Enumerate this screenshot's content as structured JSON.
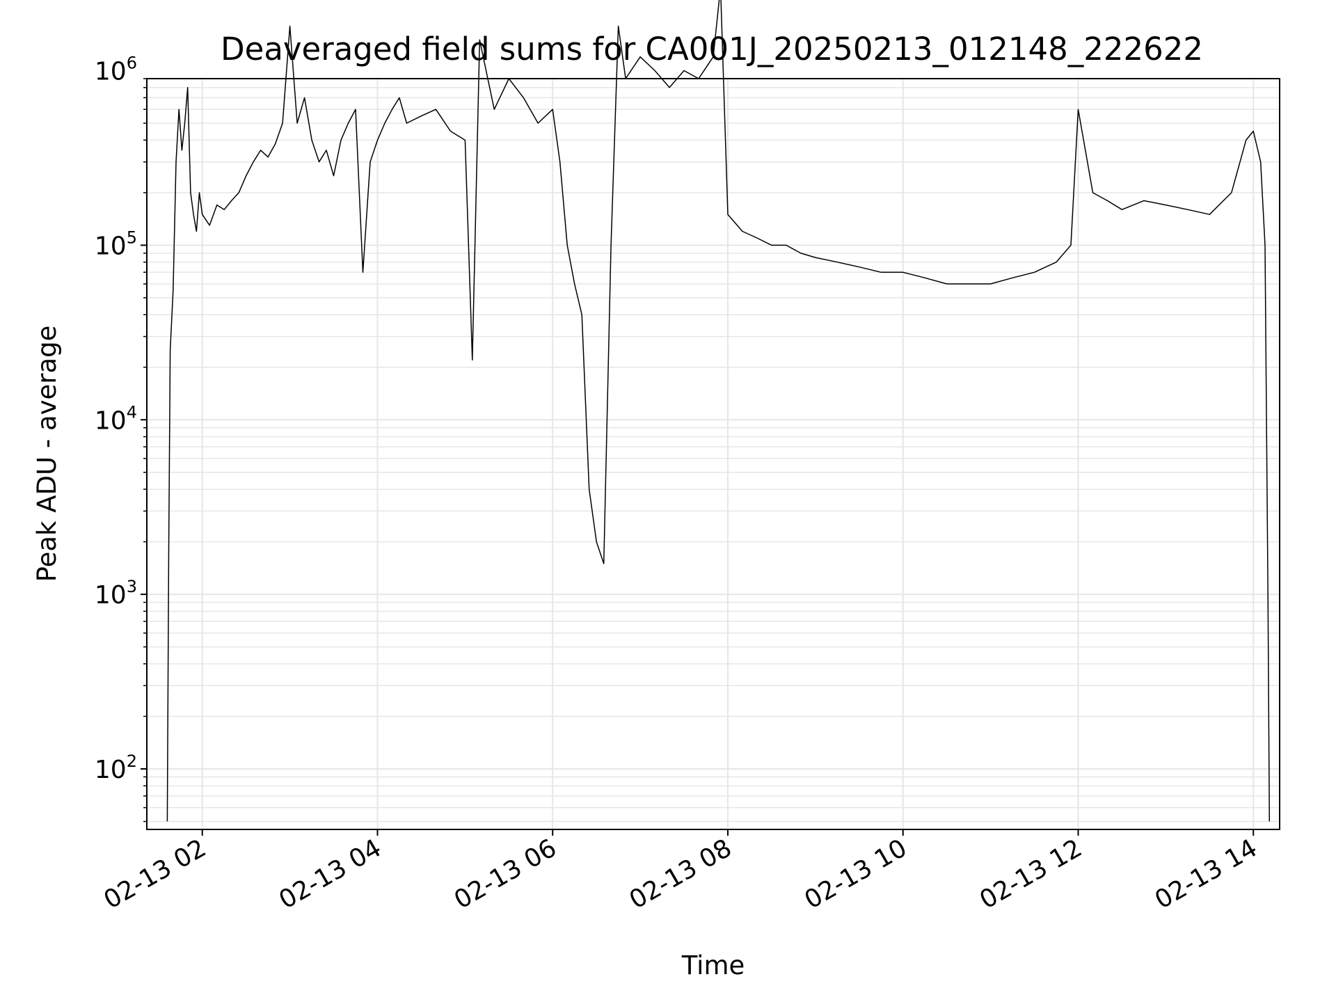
{
  "chart_data": {
    "type": "line",
    "title": "Deaveraged field sums for CA001J_20250213_012148_222622",
    "xlabel": "Time",
    "ylabel": "Peak ADU - average",
    "yscale": "log",
    "ylim": [
      45,
      900000
    ],
    "xlim": [
      "02-13 01:22",
      "02-13 14:18"
    ],
    "grid": true,
    "line_color": "#000000",
    "grid_color": "#e6e6e6",
    "x_ticks": [
      "02-13 02",
      "02-13 04",
      "02-13 06",
      "02-13 08",
      "02-13 10",
      "02-13 12",
      "02-13 14"
    ],
    "y_ticks": [
      {
        "base": "10",
        "exp": "2",
        "value": 100
      },
      {
        "base": "10",
        "exp": "3",
        "value": 1000
      },
      {
        "base": "10",
        "exp": "4",
        "value": 10000
      },
      {
        "base": "10",
        "exp": "5",
        "value": 100000
      },
      {
        "base": "10",
        "exp": "6",
        "value": 1000000
      }
    ],
    "series": [
      {
        "x": [
          "02-13 01:36",
          "02-13 01:37",
          "02-13 01:38",
          "02-13 01:40",
          "02-13 01:42",
          "02-13 01:44",
          "02-13 01:46",
          "02-13 01:48",
          "02-13 01:50",
          "02-13 01:52",
          "02-13 01:54",
          "02-13 01:56",
          "02-13 01:58",
          "02-13 02:00",
          "02-13 02:05",
          "02-13 02:10",
          "02-13 02:15",
          "02-13 02:20",
          "02-13 02:25",
          "02-13 02:30",
          "02-13 02:35",
          "02-13 02:40",
          "02-13 02:45",
          "02-13 02:50",
          "02-13 02:55",
          "02-13 03:00",
          "02-13 03:05",
          "02-13 03:10",
          "02-13 03:15",
          "02-13 03:20",
          "02-13 03:25",
          "02-13 03:30",
          "02-13 03:35",
          "02-13 03:40",
          "02-13 03:45",
          "02-13 03:50",
          "02-13 03:55",
          "02-13 04:00",
          "02-13 04:05",
          "02-13 04:10",
          "02-13 04:15",
          "02-13 04:20",
          "02-13 04:30",
          "02-13 04:40",
          "02-13 04:50",
          "02-13 05:00",
          "02-13 05:05",
          "02-13 05:10",
          "02-13 05:20",
          "02-13 05:30",
          "02-13 05:40",
          "02-13 05:50",
          "02-13 06:00",
          "02-13 06:05",
          "02-13 06:10",
          "02-13 06:15",
          "02-13 06:20",
          "02-13 06:25",
          "02-13 06:30",
          "02-13 06:35",
          "02-13 06:40",
          "02-13 06:45",
          "02-13 06:50",
          "02-13 07:00",
          "02-13 07:10",
          "02-13 07:20",
          "02-13 07:30",
          "02-13 07:40",
          "02-13 07:50",
          "02-13 07:55",
          "02-13 08:00",
          "02-13 08:10",
          "02-13 08:20",
          "02-13 08:30",
          "02-13 08:40",
          "02-13 08:50",
          "02-13 09:00",
          "02-13 09:15",
          "02-13 09:30",
          "02-13 09:45",
          "02-13 10:00",
          "02-13 10:15",
          "02-13 10:30",
          "02-13 10:45",
          "02-13 11:00",
          "02-13 11:15",
          "02-13 11:30",
          "02-13 11:45",
          "02-13 11:55",
          "02-13 12:00",
          "02-13 12:10",
          "02-13 12:20",
          "02-13 12:30",
          "02-13 12:45",
          "02-13 13:00",
          "02-13 13:15",
          "02-13 13:30",
          "02-13 13:45",
          "02-13 13:55",
          "02-13 14:00",
          "02-13 14:05",
          "02-13 14:08",
          "02-13 14:10",
          "02-13 14:11"
        ],
        "y": [
          50,
          1800,
          25000,
          55000,
          300000,
          600000,
          350000,
          500000,
          800000,
          200000,
          150000,
          120000,
          200000,
          150000,
          130000,
          170000,
          160000,
          180000,
          200000,
          250000,
          300000,
          350000,
          320000,
          380000,
          500000,
          1800000,
          500000,
          700000,
          400000,
          300000,
          350000,
          250000,
          400000,
          500000,
          600000,
          70000,
          300000,
          400000,
          500000,
          600000,
          700000,
          500000,
          550000,
          600000,
          450000,
          400000,
          22000,
          1500000,
          600000,
          900000,
          700000,
          500000,
          600000,
          300000,
          100000,
          60000,
          40000,
          4000,
          2000,
          1500,
          100000,
          1800000,
          900000,
          1200000,
          1000000,
          800000,
          1000000,
          900000,
          1200000,
          3000000,
          150000,
          120000,
          110000,
          100000,
          100000,
          90000,
          85000,
          80000,
          75000,
          70000,
          70000,
          65000,
          60000,
          60000,
          60000,
          65000,
          70000,
          80000,
          100000,
          600000,
          200000,
          180000,
          160000,
          180000,
          170000,
          160000,
          150000,
          200000,
          400000,
          450000,
          300000,
          100000,
          1000,
          50
        ]
      }
    ]
  }
}
